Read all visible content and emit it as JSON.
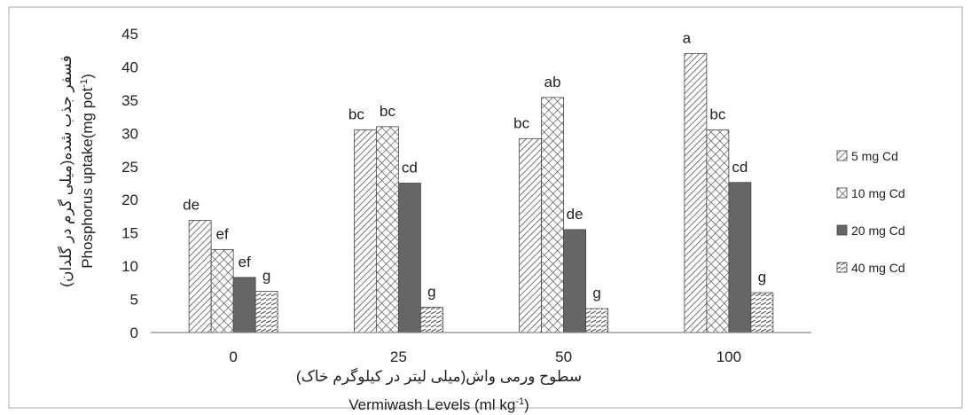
{
  "chart_data": {
    "type": "bar",
    "categories": [
      "0",
      "25",
      "50",
      "100"
    ],
    "series": [
      {
        "name": "5 mg Cd",
        "values": [
          16.9,
          30.5,
          29.2,
          42.0
        ],
        "letters": [
          "de",
          "bc",
          "bc",
          "a"
        ],
        "pattern": "diag"
      },
      {
        "name": "10 mg Cd",
        "values": [
          12.5,
          31.0,
          35.4,
          30.5
        ],
        "letters": [
          "ef",
          "bc",
          "ab",
          "bc"
        ],
        "pattern": "cross"
      },
      {
        "name": "20 mg Cd",
        "values": [
          8.3,
          22.5,
          15.5,
          22.6
        ],
        "letters": [
          "ef",
          "cd",
          "de",
          "cd"
        ],
        "pattern": "solid"
      },
      {
        "name": "40 mg Cd",
        "values": [
          6.2,
          3.8,
          3.6,
          6.0
        ],
        "letters": [
          "g",
          "g",
          "g",
          "g"
        ],
        "pattern": "hstripe"
      }
    ],
    "ylim": [
      0,
      45
    ],
    "yticks": [
      0,
      5,
      10,
      15,
      20,
      25,
      30,
      35,
      40,
      45
    ],
    "ylabel_fa": "فسفر جذب شده(میلی گرم در گلدان)",
    "ylabel_en": "Phosphorus uptake(mg pot",
    "ylabel_en_sup": "-1",
    "ylabel_en_end": ")",
    "xlabel_fa": "سطوح ورمی واش(میلی لیتر در کیلوگرم خاک)",
    "xlabel_en": "Vermiwash Levels (ml kg",
    "xlabel_en_sup": "-1",
    "xlabel_en_end": ")",
    "legend_position": "right",
    "colors": {
      "solid": "#666666",
      "hatch": "#555555",
      "axis": "#888888",
      "border": "#aaaaaa"
    }
  }
}
